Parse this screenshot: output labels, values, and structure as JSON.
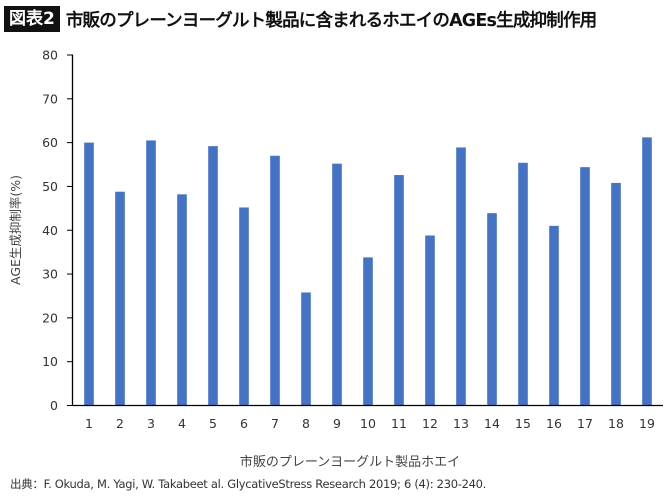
{
  "header": {
    "badge": "図表2",
    "title": "市販のプレーンヨーグルト製品に含まれるホエイのAGEs生成抑制作用"
  },
  "chart_data": {
    "type": "bar",
    "title": "",
    "xlabel": "市販のプレーンヨーグルト製品ホエイ",
    "ylabel": "AGE生成抑制率(%)",
    "ylim": [
      0,
      80
    ],
    "yticks": [
      0,
      10,
      20,
      30,
      40,
      50,
      60,
      70,
      80
    ],
    "grid": false,
    "categories": [
      "1",
      "2",
      "3",
      "4",
      "5",
      "6",
      "7",
      "8",
      "9",
      "10",
      "11",
      "12",
      "13",
      "14",
      "15",
      "16",
      "17",
      "18",
      "19"
    ],
    "values": [
      60.0,
      48.8,
      60.5,
      48.2,
      59.2,
      45.2,
      57.0,
      25.8,
      55.2,
      33.8,
      52.6,
      38.8,
      58.9,
      43.9,
      55.4,
      41.0,
      54.4,
      50.8,
      61.2
    ],
    "bar_color": "#4472C4"
  },
  "footer": {
    "source": "出典：F. Okuda, M. Yagi, W. Takabeet al. GlycativeStress Research 2019; 6 (4): 230-240."
  }
}
